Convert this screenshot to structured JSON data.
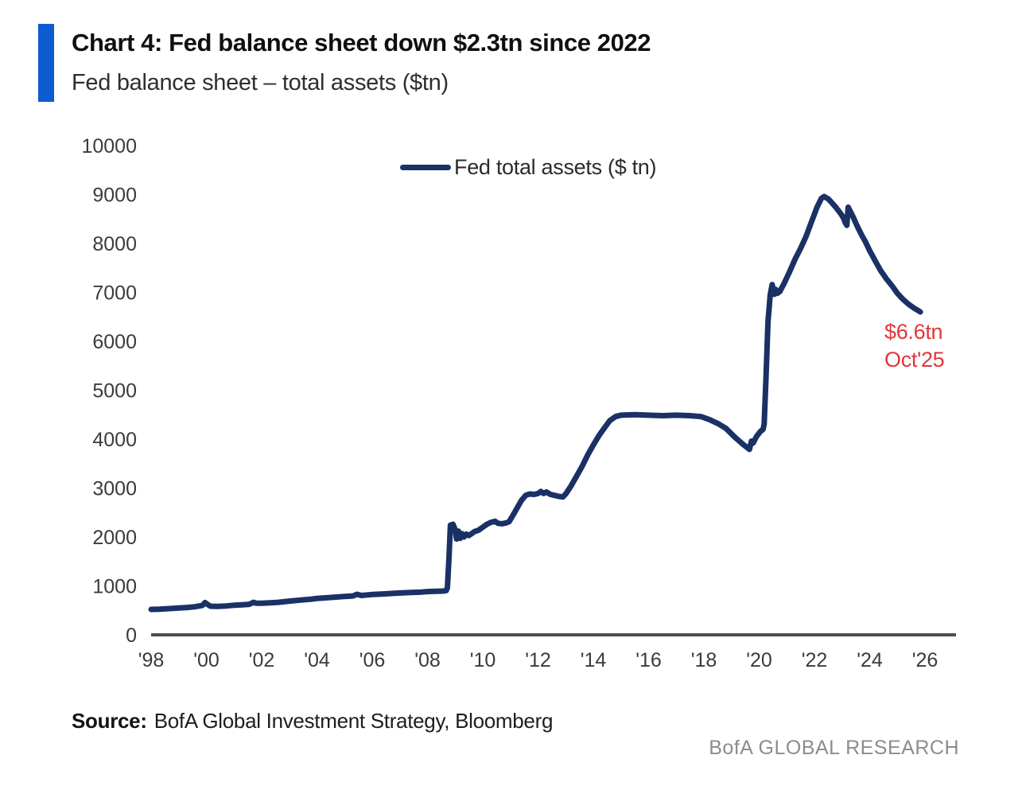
{
  "header": {
    "title": "Chart 4: Fed balance sheet down $2.3tn since 2022",
    "subtitle": "Fed balance sheet – total assets ($tn)"
  },
  "legend": {
    "label": "Fed total assets ($ tn)"
  },
  "annotation": {
    "line1": "$6.6tn",
    "line2": "Oct'25"
  },
  "source": {
    "label": "Source:",
    "text": "BofA Global Investment Strategy, Bloomberg"
  },
  "footer": {
    "text": "BofA GLOBAL RESEARCH"
  },
  "colors": {
    "line": "#1A3166",
    "accent_bar": "#0D5BD1",
    "annotation": "#E23637",
    "axis": "#4D4D4D",
    "tick_text": "#3b3b3b"
  },
  "chart_data": {
    "type": "line",
    "title": "Chart 4: Fed balance sheet down $2.3tn since 2022",
    "subtitle": "Fed balance sheet – total assets ($tn)",
    "xlabel": "",
    "ylabel": "",
    "xlim": [
      1998,
      2026
    ],
    "ylim": [
      0,
      10000
    ],
    "grid": false,
    "legend_position": "top-center",
    "yticks": [
      0,
      1000,
      2000,
      3000,
      4000,
      5000,
      6000,
      7000,
      8000,
      9000,
      10000
    ],
    "xticks": [
      {
        "year": 1998,
        "label": "'98"
      },
      {
        "year": 2000,
        "label": "'00"
      },
      {
        "year": 2002,
        "label": "'02"
      },
      {
        "year": 2004,
        "label": "'04"
      },
      {
        "year": 2006,
        "label": "'06"
      },
      {
        "year": 2008,
        "label": "'08"
      },
      {
        "year": 2010,
        "label": "'10"
      },
      {
        "year": 2012,
        "label": "'12"
      },
      {
        "year": 2014,
        "label": "'14"
      },
      {
        "year": 2016,
        "label": "'16"
      },
      {
        "year": 2018,
        "label": "'18"
      },
      {
        "year": 2020,
        "label": "'20"
      },
      {
        "year": 2022,
        "label": "'22"
      },
      {
        "year": 2024,
        "label": "'24"
      },
      {
        "year": 2026,
        "label": "'26"
      }
    ],
    "annotations": [
      {
        "text": "$6.6tn Oct'25",
        "x": 2025.83,
        "y": 6600,
        "color": "#E23637"
      }
    ],
    "series": [
      {
        "name": "Fed total assets ($ tn)",
        "color": "#1A3166",
        "points": [
          [
            1998.0,
            520
          ],
          [
            1998.3,
            525
          ],
          [
            1998.6,
            535
          ],
          [
            1999.0,
            550
          ],
          [
            1999.3,
            560
          ],
          [
            1999.6,
            575
          ],
          [
            1999.85,
            600
          ],
          [
            1999.95,
            660
          ],
          [
            2000.05,
            620
          ],
          [
            2000.15,
            585
          ],
          [
            2000.4,
            580
          ],
          [
            2000.7,
            590
          ],
          [
            2001.0,
            605
          ],
          [
            2001.3,
            615
          ],
          [
            2001.55,
            625
          ],
          [
            2001.7,
            665
          ],
          [
            2001.8,
            645
          ],
          [
            2002.0,
            645
          ],
          [
            2002.3,
            655
          ],
          [
            2002.6,
            665
          ],
          [
            2003.0,
            690
          ],
          [
            2003.4,
            710
          ],
          [
            2003.8,
            730
          ],
          [
            2004.0,
            745
          ],
          [
            2004.4,
            760
          ],
          [
            2004.8,
            775
          ],
          [
            2005.0,
            785
          ],
          [
            2005.3,
            795
          ],
          [
            2005.45,
            830
          ],
          [
            2005.6,
            805
          ],
          [
            2006.0,
            825
          ],
          [
            2006.4,
            835
          ],
          [
            2006.8,
            850
          ],
          [
            2007.0,
            855
          ],
          [
            2007.4,
            865
          ],
          [
            2007.8,
            875
          ],
          [
            2008.0,
            885
          ],
          [
            2008.3,
            890
          ],
          [
            2008.55,
            895
          ],
          [
            2008.68,
            905
          ],
          [
            2008.72,
            960
          ],
          [
            2008.78,
            1600
          ],
          [
            2008.83,
            2240
          ],
          [
            2008.92,
            2260
          ],
          [
            2009.0,
            2150
          ],
          [
            2009.05,
            1960
          ],
          [
            2009.12,
            2120
          ],
          [
            2009.18,
            1970
          ],
          [
            2009.25,
            2070
          ],
          [
            2009.32,
            2000
          ],
          [
            2009.4,
            2060
          ],
          [
            2009.5,
            2030
          ],
          [
            2009.6,
            2070
          ],
          [
            2009.7,
            2110
          ],
          [
            2009.85,
            2140
          ],
          [
            2010.0,
            2200
          ],
          [
            2010.15,
            2260
          ],
          [
            2010.3,
            2300
          ],
          [
            2010.45,
            2320
          ],
          [
            2010.55,
            2280
          ],
          [
            2010.7,
            2270
          ],
          [
            2010.85,
            2290
          ],
          [
            2010.95,
            2310
          ],
          [
            2011.1,
            2450
          ],
          [
            2011.25,
            2600
          ],
          [
            2011.4,
            2750
          ],
          [
            2011.55,
            2850
          ],
          [
            2011.7,
            2880
          ],
          [
            2011.85,
            2870
          ],
          [
            2012.0,
            2890
          ],
          [
            2012.1,
            2930
          ],
          [
            2012.2,
            2890
          ],
          [
            2012.3,
            2920
          ],
          [
            2012.45,
            2870
          ],
          [
            2012.6,
            2850
          ],
          [
            2012.75,
            2830
          ],
          [
            2012.9,
            2820
          ],
          [
            2013.0,
            2880
          ],
          [
            2013.2,
            3050
          ],
          [
            2013.4,
            3250
          ],
          [
            2013.6,
            3450
          ],
          [
            2013.8,
            3680
          ],
          [
            2014.0,
            3880
          ],
          [
            2014.2,
            4070
          ],
          [
            2014.4,
            4230
          ],
          [
            2014.6,
            4380
          ],
          [
            2014.8,
            4460
          ],
          [
            2015.0,
            4490
          ],
          [
            2015.5,
            4500
          ],
          [
            2016.0,
            4490
          ],
          [
            2016.5,
            4480
          ],
          [
            2017.0,
            4490
          ],
          [
            2017.5,
            4480
          ],
          [
            2017.9,
            4460
          ],
          [
            2018.2,
            4400
          ],
          [
            2018.5,
            4320
          ],
          [
            2018.8,
            4220
          ],
          [
            2019.1,
            4050
          ],
          [
            2019.4,
            3900
          ],
          [
            2019.65,
            3790
          ],
          [
            2019.72,
            3960
          ],
          [
            2019.78,
            3920
          ],
          [
            2019.9,
            4050
          ],
          [
            2020.05,
            4160
          ],
          [
            2020.14,
            4200
          ],
          [
            2020.18,
            4310
          ],
          [
            2020.25,
            5300
          ],
          [
            2020.32,
            6400
          ],
          [
            2020.4,
            6950
          ],
          [
            2020.47,
            7160
          ],
          [
            2020.55,
            6960
          ],
          [
            2020.6,
            7060
          ],
          [
            2020.66,
            6980
          ],
          [
            2020.75,
            7020
          ],
          [
            2020.9,
            7180
          ],
          [
            2021.1,
            7420
          ],
          [
            2021.3,
            7680
          ],
          [
            2021.5,
            7900
          ],
          [
            2021.7,
            8150
          ],
          [
            2021.9,
            8450
          ],
          [
            2022.1,
            8750
          ],
          [
            2022.25,
            8920
          ],
          [
            2022.35,
            8960
          ],
          [
            2022.5,
            8910
          ],
          [
            2022.65,
            8820
          ],
          [
            2022.8,
            8720
          ],
          [
            2022.95,
            8610
          ],
          [
            2023.05,
            8520
          ],
          [
            2023.12,
            8420
          ],
          [
            2023.17,
            8370
          ],
          [
            2023.22,
            8740
          ],
          [
            2023.3,
            8650
          ],
          [
            2023.4,
            8540
          ],
          [
            2023.55,
            8350
          ],
          [
            2023.7,
            8180
          ],
          [
            2023.85,
            8030
          ],
          [
            2024.0,
            7850
          ],
          [
            2024.2,
            7640
          ],
          [
            2024.4,
            7440
          ],
          [
            2024.6,
            7280
          ],
          [
            2024.8,
            7140
          ],
          [
            2025.0,
            6980
          ],
          [
            2025.2,
            6860
          ],
          [
            2025.4,
            6760
          ],
          [
            2025.6,
            6680
          ],
          [
            2025.75,
            6630
          ],
          [
            2025.83,
            6600
          ]
        ]
      }
    ]
  }
}
